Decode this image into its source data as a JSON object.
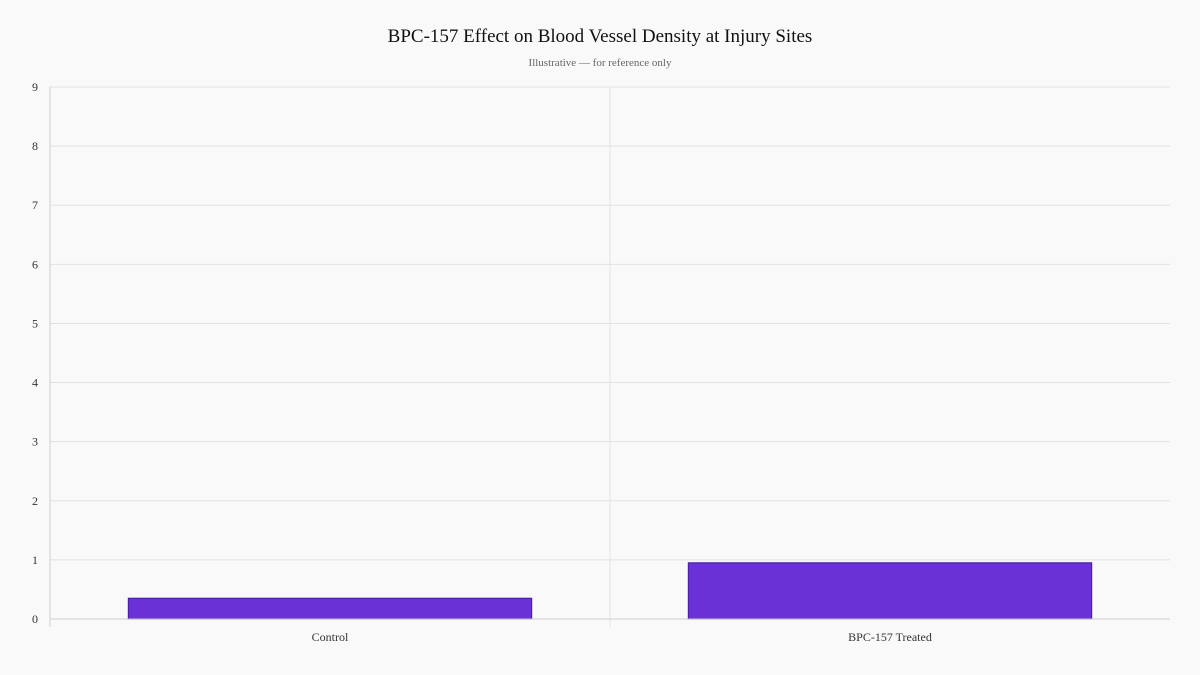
{
  "chart_data": {
    "type": "bar",
    "title": "BPC-157 Effect on Blood Vessel Density at Injury Sites",
    "subtitle": "Illustrative — for reference only",
    "xlabel": "",
    "ylabel": "",
    "categories": [
      "Control",
      "BPC-157 Treated"
    ],
    "values": [
      0.35,
      0.95
    ],
    "ylim": [
      0,
      9
    ],
    "yticks": [
      0,
      1,
      2,
      3,
      4,
      5,
      6,
      7,
      8,
      9
    ],
    "grid": true,
    "legend": "none",
    "colors": {
      "bar_fill": "#6a32d6",
      "bar_stroke": "#4a1fb0",
      "grid": "#e2e2e2",
      "axis": "#cfcfcf"
    }
  }
}
